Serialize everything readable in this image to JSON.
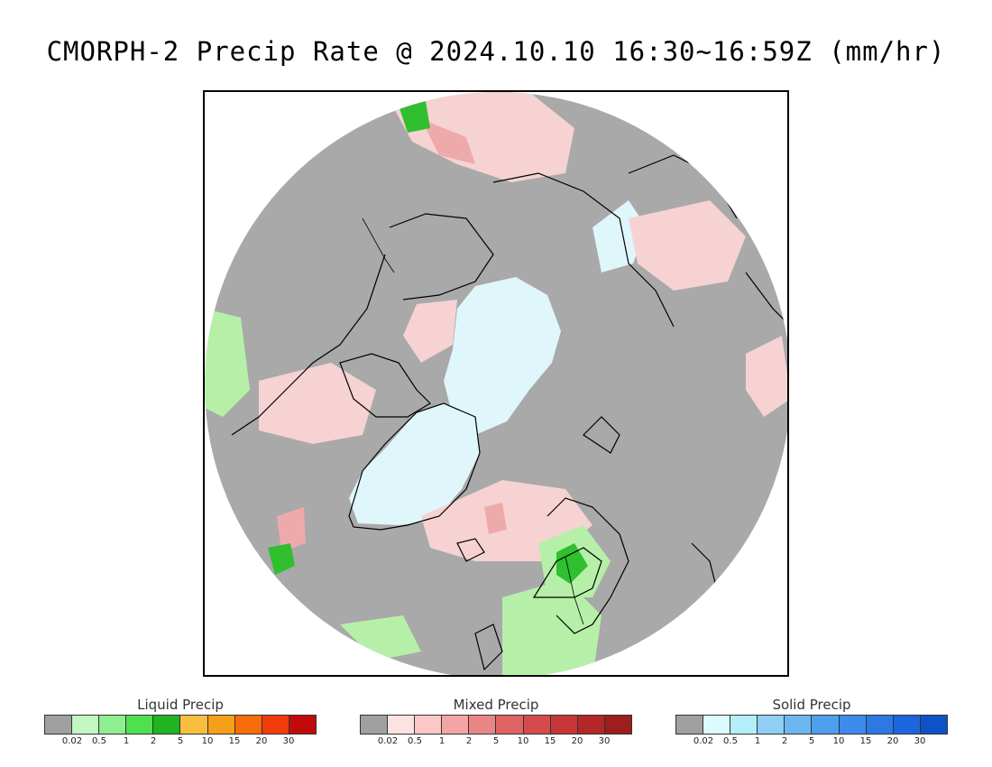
{
  "title": "CMORPH-2 Precip Rate @ 2024.10.10 16:30~16:59Z (mm/hr)",
  "map": {
    "projection": "north-polar-stereographic",
    "background_color": "#a9a9a9",
    "ice_color": "#dff6fb",
    "light_pink": "#f6d2d2",
    "pink": "#eeaaaa",
    "light_green": "#b6f0a8",
    "green": "#2fbf2f",
    "coast_color": "#000000"
  },
  "legends": [
    {
      "title": "Liquid Precip",
      "colors": [
        "#a0a0a0",
        "#c2f7c2",
        "#8fee8f",
        "#4ee04e",
        "#22b322",
        "#f9be3f",
        "#f6a01a",
        "#f76b0a",
        "#f23b0b",
        "#c30a0a"
      ],
      "ticks": [
        "0.02",
        "0.5",
        "1",
        "2",
        "5",
        "10",
        "15",
        "20",
        "30"
      ]
    },
    {
      "title": "Mixed Precip",
      "colors": [
        "#a0a0a0",
        "#fde2e2",
        "#fbc7c7",
        "#f3a5a5",
        "#ea8585",
        "#e06464",
        "#d54b4b",
        "#c73737",
        "#b32727",
        "#9e1d1d"
      ],
      "ticks": [
        "0.02",
        "0.5",
        "1",
        "2",
        "5",
        "10",
        "15",
        "20",
        "30"
      ]
    },
    {
      "title": "Solid Precip",
      "colors": [
        "#a0a0a0",
        "#dcfbff",
        "#b3eefa",
        "#8fcff5",
        "#6cb6f2",
        "#4e9fee",
        "#3d8bea",
        "#2c78e4",
        "#1c66dd",
        "#0e52c8"
      ],
      "ticks": [
        "0.02",
        "0.5",
        "1",
        "2",
        "5",
        "10",
        "15",
        "20",
        "30"
      ]
    }
  ]
}
